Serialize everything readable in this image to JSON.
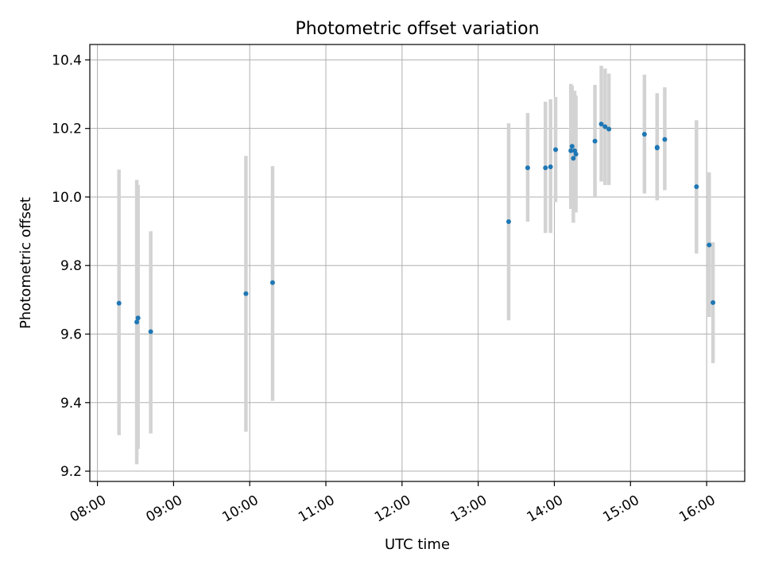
{
  "chart_data": {
    "type": "scatter",
    "title": "Photometric offset variation",
    "xlabel": "UTC time",
    "ylabel": "Photometric offset",
    "xlim": [
      "07:54",
      "16:30"
    ],
    "ylim": [
      9.17,
      10.445
    ],
    "x_ticks": [
      "08:00",
      "09:00",
      "10:00",
      "11:00",
      "12:00",
      "13:00",
      "14:00",
      "15:00",
      "16:00"
    ],
    "y_ticks": [
      "9.2",
      "9.4",
      "9.6",
      "9.8",
      "10.0",
      "10.2",
      "10.4"
    ],
    "grid": true,
    "colors": {
      "point": "#1f77b4",
      "errorbar": "#d3d3d3",
      "grid": "#b0b0b0"
    },
    "points": [
      {
        "time": "08:17",
        "y": 9.69,
        "err_low": 9.305,
        "err_high": 10.08
      },
      {
        "time": "08:31",
        "y": 9.635,
        "err_low": 9.22,
        "err_high": 10.05
      },
      {
        "time": "08:32",
        "y": 9.647,
        "err_low": 9.265,
        "err_high": 10.035
      },
      {
        "time": "08:42",
        "y": 9.607,
        "err_low": 9.31,
        "err_high": 9.9
      },
      {
        "time": "09:57",
        "y": 9.718,
        "err_low": 9.315,
        "err_high": 10.12
      },
      {
        "time": "10:18",
        "y": 9.75,
        "err_low": 9.405,
        "err_high": 10.09
      },
      {
        "time": "13:24",
        "y": 9.928,
        "err_low": 9.64,
        "err_high": 10.215
      },
      {
        "time": "13:39",
        "y": 10.085,
        "err_low": 9.928,
        "err_high": 10.245
      },
      {
        "time": "13:53",
        "y": 10.085,
        "err_low": 9.895,
        "err_high": 10.278
      },
      {
        "time": "13:57",
        "y": 10.088,
        "err_low": 9.895,
        "err_high": 10.285
      },
      {
        "time": "14:01",
        "y": 10.138,
        "err_low": 9.985,
        "err_high": 10.292
      },
      {
        "time": "14:13",
        "y": 10.135,
        "err_low": 9.965,
        "err_high": 10.33
      },
      {
        "time": "14:14",
        "y": 10.148,
        "err_low": 9.98,
        "err_high": 10.325
      },
      {
        "time": "14:15",
        "y": 10.113,
        "err_low": 9.925,
        "err_high": 10.3
      },
      {
        "time": "14:16",
        "y": 10.135,
        "err_low": 9.97,
        "err_high": 10.31
      },
      {
        "time": "14:17",
        "y": 10.125,
        "err_low": 9.955,
        "err_high": 10.296
      },
      {
        "time": "14:32",
        "y": 10.163,
        "err_low": 9.998,
        "err_high": 10.327
      },
      {
        "time": "14:37",
        "y": 10.213,
        "err_low": 10.045,
        "err_high": 10.383
      },
      {
        "time": "14:40",
        "y": 10.205,
        "err_low": 10.035,
        "err_high": 10.375
      },
      {
        "time": "14:43",
        "y": 10.198,
        "err_low": 10.035,
        "err_high": 10.36
      },
      {
        "time": "15:11",
        "y": 10.183,
        "err_low": 10.01,
        "err_high": 10.357
      },
      {
        "time": "15:21",
        "y": 10.143,
        "err_low": 9.99,
        "err_high": 10.303
      },
      {
        "time": "15:21",
        "y": 10.145,
        "err_low": 9.995,
        "err_high": 10.297
      },
      {
        "time": "15:27",
        "y": 10.168,
        "err_low": 10.02,
        "err_high": 10.32
      },
      {
        "time": "15:52",
        "y": 10.03,
        "err_low": 9.835,
        "err_high": 10.224
      },
      {
        "time": "16:02",
        "y": 9.86,
        "err_low": 9.65,
        "err_high": 10.072
      },
      {
        "time": "16:05",
        "y": 9.692,
        "err_low": 9.515,
        "err_high": 9.868
      }
    ]
  }
}
